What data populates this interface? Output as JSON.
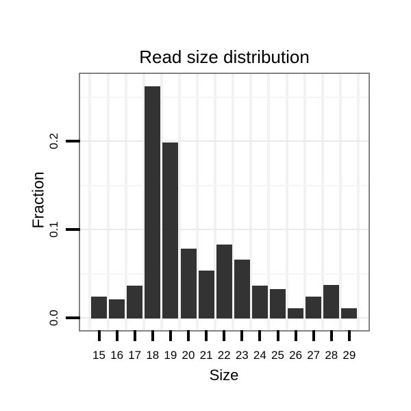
{
  "title": "Read size distribution",
  "x_axis": {
    "label": "Size",
    "tick_labels": [
      "15",
      "16",
      "17",
      "18",
      "19",
      "20",
      "21",
      "22",
      "23",
      "24",
      "25",
      "26",
      "27",
      "28",
      "29"
    ]
  },
  "y_axis": {
    "label": "Fraction",
    "tick_labels": [
      "0.0",
      "0.1",
      "0.2"
    ],
    "tick_values": [
      0,
      0.1,
      0.2
    ],
    "minor_gridline_values": [
      0.05,
      0.15,
      0.25
    ]
  },
  "chart_data": {
    "type": "bar",
    "title": "Read size distribution",
    "xlabel": "Size",
    "ylabel": "Fraction",
    "categories": [
      15,
      16,
      17,
      18,
      19,
      20,
      21,
      22,
      23,
      24,
      25,
      26,
      27,
      28,
      29
    ],
    "values": [
      0.025,
      0.022,
      0.037,
      0.263,
      0.199,
      0.079,
      0.054,
      0.084,
      0.067,
      0.037,
      0.033,
      0.012,
      0.025,
      0.038,
      0.012
    ],
    "ylim": [
      0,
      0.27
    ],
    "y_major_ticks": [
      0,
      0.1,
      0.2
    ],
    "grid": true,
    "legend_position": "none",
    "bar_color": "#333333",
    "panel_border_color": "#838383",
    "grid_major_color": "#ebebeb",
    "grid_minor_color": "#f5f5f5",
    "tick_color": "#000000",
    "text_color": "#000000"
  }
}
